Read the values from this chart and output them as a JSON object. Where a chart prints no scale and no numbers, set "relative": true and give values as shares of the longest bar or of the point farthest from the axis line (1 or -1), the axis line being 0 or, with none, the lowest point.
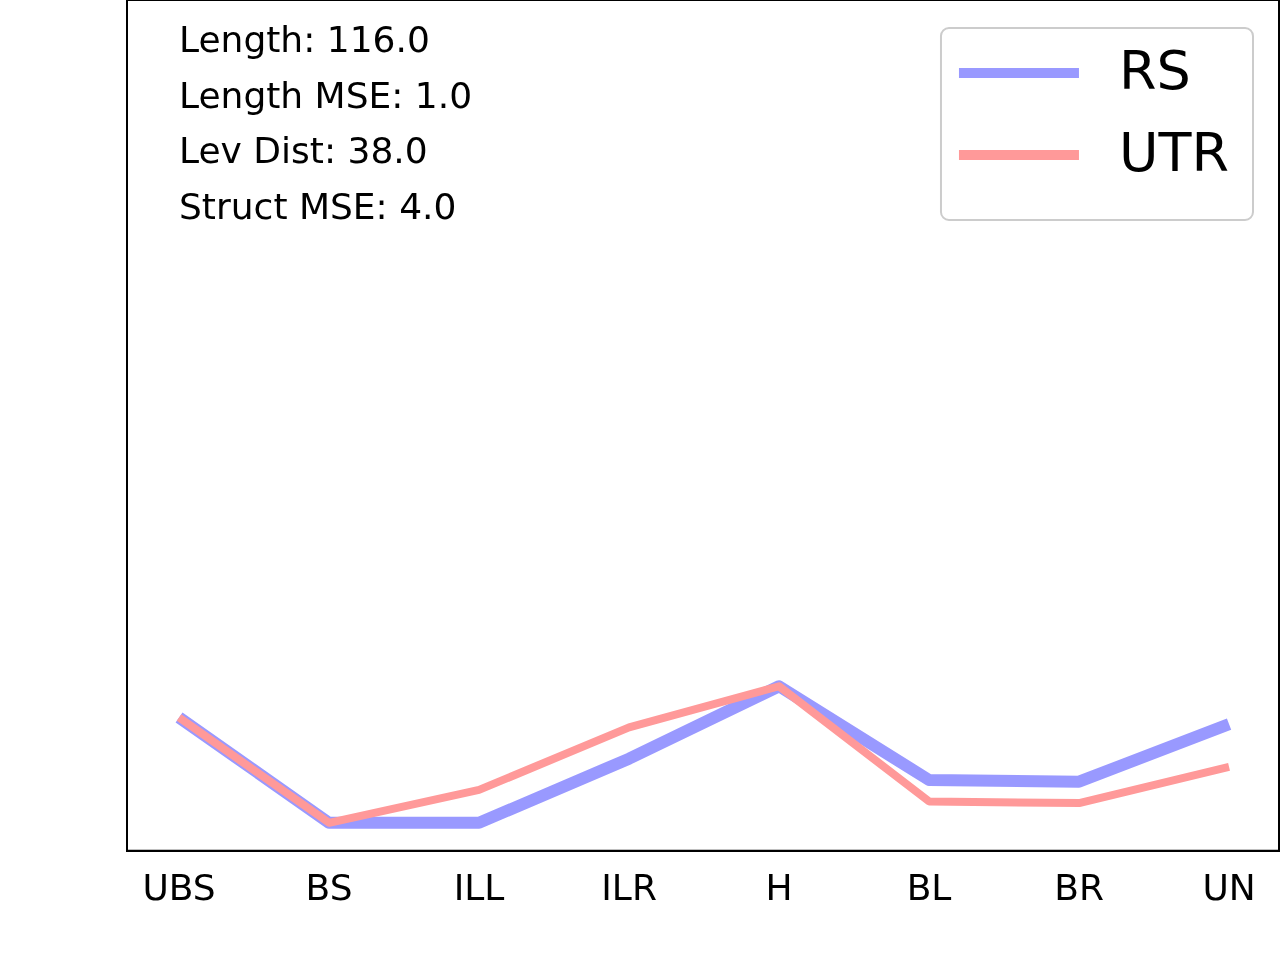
{
  "chart_data": {
    "type": "line",
    "relative": true,
    "categories": [
      "UBS",
      "BS",
      "ILL",
      "ILR",
      "H",
      "BL",
      "BR",
      "UN"
    ],
    "series": [
      {
        "name": "RS",
        "color": "#9999ff",
        "values": [
          0.81,
          0.17,
          0.17,
          0.56,
          1,
          0.43,
          0.42,
          0.77
        ]
      },
      {
        "name": "UTR",
        "color": "#ff9999",
        "values": [
          0.81,
          0.17,
          0.37,
          0.75,
          1,
          0.3,
          0.29,
          0.51
        ]
      }
    ],
    "annotations": [
      "Length: 116.0",
      "Length MSE: 1.0",
      "Lev Dist: 38.0",
      "Struct MSE: 4.0"
    ],
    "legend": "top right",
    "grid": false,
    "marker": "none",
    "line_style": "solid"
  }
}
